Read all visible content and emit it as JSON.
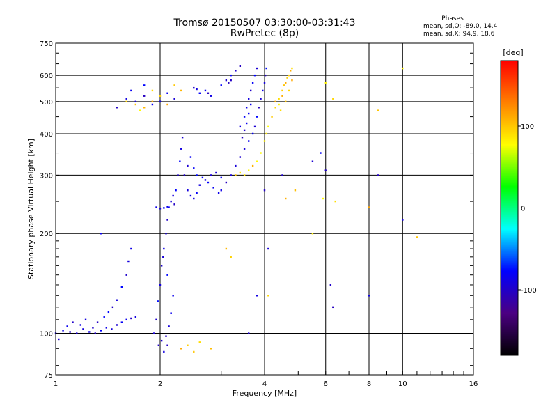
{
  "header": {
    "title_line1": "Tromsø 20150507 03:30:00-03:31:43",
    "title_line2": "RwPretec (8p)",
    "stats_title": "Phases",
    "stats_o": "mean, sd,O: -89.0, 14.4",
    "stats_x": "mean, sd,X:  94.9, 18.6"
  },
  "chart_data": {
    "type": "scatter",
    "title": "Tromsø 20150507 03:30:00-03:31:43",
    "subtitle": "RwPretec (8p)",
    "xlabel": "Frequency [MHz]",
    "ylabel": "Stationary phase Virtual Height [km]",
    "xscale": "log",
    "yscale": "log",
    "xlim": [
      1,
      16
    ],
    "ylim": [
      75,
      750
    ],
    "x_ticks": [
      1,
      2,
      4,
      6,
      8,
      10,
      16
    ],
    "x_tick_labels": [
      "1",
      "2",
      "4",
      "6",
      "8",
      "10",
      "16"
    ],
    "y_ticks": [
      75,
      100,
      200,
      300,
      400,
      500,
      600,
      750
    ],
    "y_tick_labels": [
      "75",
      "100",
      "200",
      "300",
      "400",
      "500",
      "600",
      "750"
    ],
    "grid": true,
    "colorbar": {
      "label": "[deg]",
      "range": [
        -180,
        180
      ],
      "ticks": [
        100,
        0,
        -100
      ],
      "tick_labels": [
        "100",
        "0",
        "-100"
      ],
      "colors": [
        "#000000",
        "#4b0082",
        "#0000ff",
        "#00ffff",
        "#00ff00",
        "#ffff00",
        "#ff8000",
        "#ff0000"
      ]
    },
    "series": [
      {
        "name": "O",
        "phase_mean": -89.0,
        "phase_sd": 14.4,
        "points": [
          [
            1.0,
            100
          ],
          [
            1.05,
            102
          ],
          [
            1.1,
            101
          ],
          [
            1.15,
            100
          ],
          [
            1.2,
            103
          ],
          [
            1.25,
            101
          ],
          [
            1.3,
            100
          ],
          [
            1.35,
            102
          ],
          [
            1.4,
            104
          ],
          [
            1.45,
            103
          ],
          [
            1.5,
            106
          ],
          [
            1.55,
            108
          ],
          [
            1.6,
            110
          ],
          [
            1.65,
            111
          ],
          [
            1.7,
            112
          ],
          [
            1.02,
            96
          ],
          [
            1.08,
            105
          ],
          [
            1.12,
            108
          ],
          [
            1.18,
            106
          ],
          [
            1.22,
            110
          ],
          [
            1.28,
            104
          ],
          [
            1.32,
            108
          ],
          [
            1.38,
            112
          ],
          [
            1.42,
            116
          ],
          [
            1.46,
            120
          ],
          [
            1.5,
            126
          ],
          [
            1.55,
            138
          ],
          [
            1.6,
            150
          ],
          [
            1.62,
            165
          ],
          [
            1.65,
            180
          ],
          [
            1.35,
            200
          ],
          [
            1.92,
            100
          ],
          [
            1.95,
            110
          ],
          [
            1.97,
            125
          ],
          [
            2.0,
            140
          ],
          [
            2.02,
            160
          ],
          [
            2.05,
            180
          ],
          [
            2.08,
            200
          ],
          [
            2.1,
            220
          ],
          [
            2.12,
            240
          ],
          [
            2.15,
            250
          ],
          [
            2.18,
            260
          ],
          [
            2.2,
            245
          ],
          [
            2.22,
            270
          ],
          [
            2.25,
            300
          ],
          [
            2.28,
            330
          ],
          [
            2.3,
            360
          ],
          [
            2.32,
            390
          ],
          [
            1.95,
            240
          ],
          [
            2.0,
            238
          ],
          [
            2.05,
            239
          ],
          [
            2.1,
            241
          ],
          [
            1.98,
            92
          ],
          [
            2.02,
            95
          ],
          [
            2.05,
            88
          ],
          [
            2.1,
            92
          ],
          [
            2.08,
            98
          ],
          [
            2.12,
            105
          ],
          [
            2.15,
            115
          ],
          [
            2.18,
            130
          ],
          [
            2.1,
            150
          ],
          [
            2.04,
            170
          ],
          [
            2.4,
            270
          ],
          [
            2.45,
            260
          ],
          [
            2.5,
            255
          ],
          [
            2.55,
            265
          ],
          [
            2.6,
            280
          ],
          [
            2.7,
            290
          ],
          [
            2.8,
            300
          ],
          [
            2.9,
            305
          ],
          [
            3.0,
            295
          ],
          [
            2.35,
            300
          ],
          [
            2.4,
            320
          ],
          [
            2.45,
            340
          ],
          [
            2.5,
            315
          ],
          [
            2.55,
            300
          ],
          [
            2.65,
            295
          ],
          [
            2.75,
            285
          ],
          [
            2.85,
            275
          ],
          [
            2.95,
            265
          ],
          [
            3.0,
            270
          ],
          [
            3.1,
            285
          ],
          [
            3.2,
            300
          ],
          [
            3.3,
            320
          ],
          [
            3.4,
            340
          ],
          [
            3.5,
            360
          ],
          [
            3.6,
            380
          ],
          [
            3.7,
            400
          ],
          [
            3.75,
            420
          ],
          [
            3.8,
            450
          ],
          [
            3.85,
            480
          ],
          [
            3.9,
            510
          ],
          [
            3.95,
            540
          ],
          [
            4.0,
            570
          ],
          [
            4.02,
            600
          ],
          [
            4.05,
            630
          ],
          [
            3.4,
            420
          ],
          [
            3.5,
            450
          ],
          [
            3.55,
            480
          ],
          [
            3.6,
            510
          ],
          [
            3.65,
            540
          ],
          [
            3.7,
            570
          ],
          [
            3.75,
            600
          ],
          [
            3.8,
            630
          ],
          [
            3.45,
            390
          ],
          [
            3.5,
            410
          ],
          [
            3.55,
            430
          ],
          [
            3.6,
            460
          ],
          [
            3.65,
            490
          ],
          [
            3.0,
            560
          ],
          [
            3.1,
            580
          ],
          [
            3.2,
            600
          ],
          [
            3.3,
            620
          ],
          [
            3.4,
            640
          ],
          [
            3.2,
            580
          ],
          [
            3.15,
            570
          ],
          [
            2.8,
            520
          ],
          [
            2.7,
            540
          ],
          [
            2.6,
            530
          ],
          [
            2.5,
            550
          ],
          [
            2.55,
            545
          ],
          [
            2.75,
            530
          ],
          [
            3.6,
            100
          ],
          [
            3.8,
            130
          ],
          [
            4.0,
            270
          ],
          [
            4.1,
            180
          ],
          [
            4.5,
            300
          ],
          [
            5.5,
            330
          ],
          [
            5.8,
            350
          ],
          [
            6.0,
            310
          ],
          [
            6.2,
            140
          ],
          [
            6.3,
            120
          ],
          [
            8.0,
            130
          ],
          [
            8.5,
            300
          ],
          [
            10.0,
            220
          ],
          [
            1.5,
            480
          ],
          [
            1.6,
            510
          ],
          [
            1.7,
            500
          ],
          [
            1.8,
            520
          ],
          [
            1.9,
            490
          ],
          [
            2.0,
            500
          ],
          [
            2.1,
            530
          ],
          [
            2.2,
            510
          ],
          [
            1.8,
            560
          ],
          [
            1.65,
            540
          ]
        ]
      },
      {
        "name": "X",
        "phase_mean": 94.9,
        "phase_sd": 18.6,
        "points": [
          [
            3.3,
            300
          ],
          [
            3.4,
            305
          ],
          [
            3.5,
            300
          ],
          [
            3.6,
            310
          ],
          [
            3.7,
            320
          ],
          [
            3.8,
            330
          ],
          [
            3.9,
            350
          ],
          [
            4.0,
            380
          ],
          [
            4.05,
            400
          ],
          [
            4.1,
            420
          ],
          [
            4.2,
            450
          ],
          [
            4.3,
            480
          ],
          [
            4.4,
            510
          ],
          [
            4.5,
            540
          ],
          [
            4.6,
            570
          ],
          [
            4.7,
            600
          ],
          [
            4.8,
            630
          ],
          [
            4.4,
            490
          ],
          [
            4.5,
            520
          ],
          [
            4.55,
            560
          ],
          [
            4.65,
            590
          ],
          [
            4.75,
            620
          ],
          [
            4.6,
            500
          ],
          [
            4.7,
            540
          ],
          [
            4.8,
            580
          ],
          [
            4.3,
            500
          ],
          [
            4.45,
            470
          ],
          [
            1.6,
            500
          ],
          [
            1.7,
            490
          ],
          [
            1.8,
            480
          ],
          [
            1.9,
            500
          ],
          [
            2.0,
            520
          ],
          [
            2.1,
            490
          ],
          [
            2.2,
            560
          ],
          [
            2.3,
            540
          ],
          [
            1.9,
            540
          ],
          [
            1.75,
            470
          ],
          [
            2.3,
            90
          ],
          [
            2.4,
            92
          ],
          [
            2.5,
            88
          ],
          [
            2.6,
            94
          ],
          [
            2.8,
            90
          ],
          [
            3.1,
            180
          ],
          [
            3.2,
            170
          ],
          [
            4.1,
            130
          ],
          [
            4.6,
            255
          ],
          [
            4.9,
            270
          ],
          [
            5.9,
            255
          ],
          [
            6.4,
            250
          ],
          [
            6.3,
            510
          ],
          [
            8.0,
            240
          ],
          [
            8.5,
            470
          ],
          [
            10.0,
            630
          ],
          [
            11.0,
            195
          ],
          [
            6.0,
            570
          ],
          [
            5.5,
            200
          ]
        ]
      }
    ]
  }
}
